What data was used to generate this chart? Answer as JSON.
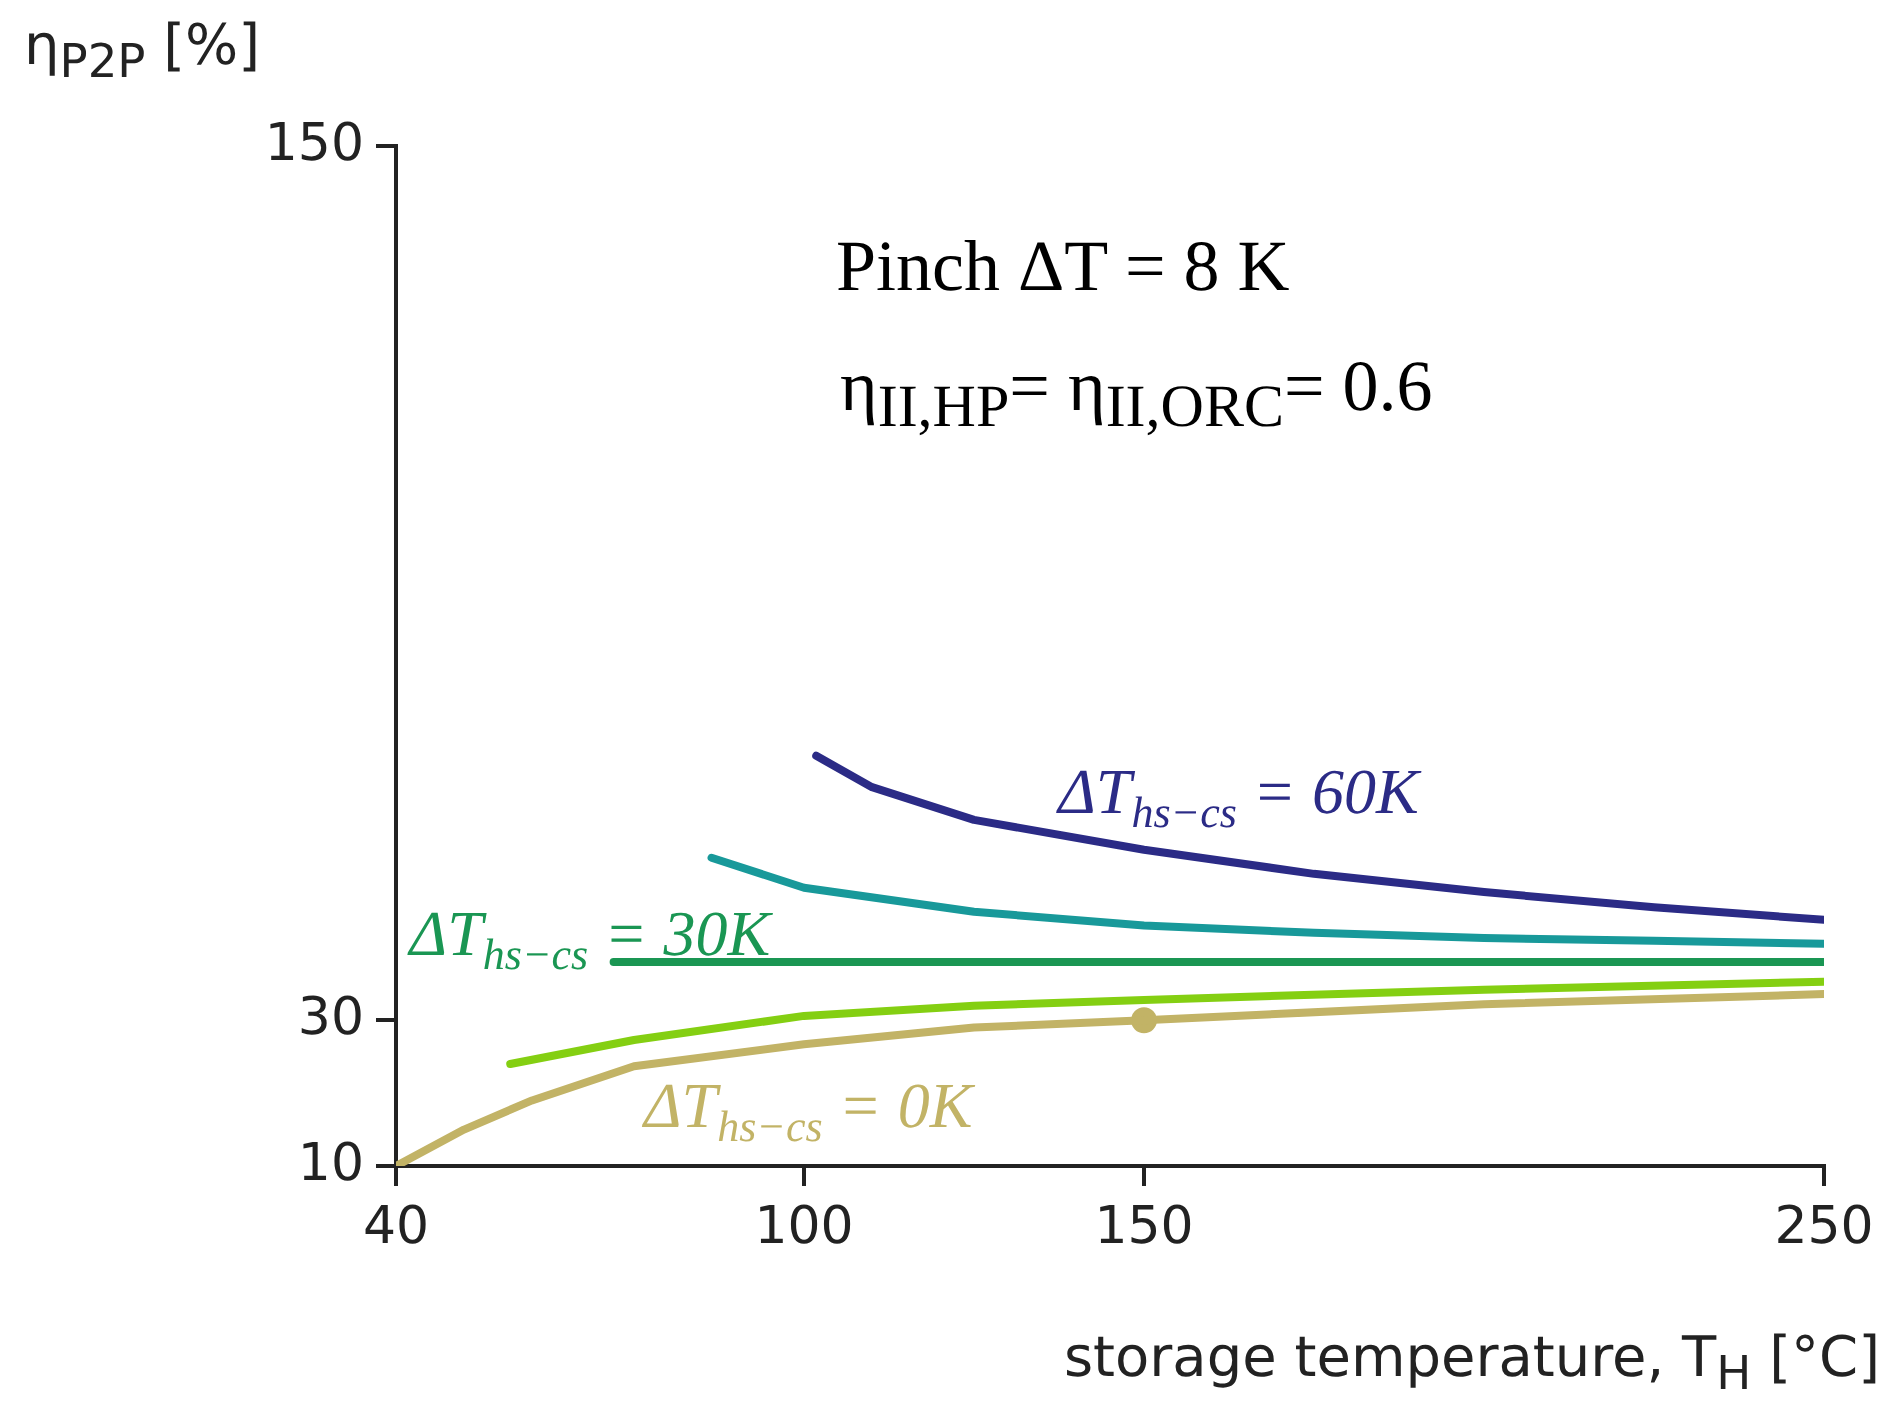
{
  "chart_data": {
    "type": "line",
    "xlabel": "storage temperature, T$_{H}$ [°C]",
    "ylabel": "η$_{P2P}$ [%]",
    "annotations": [
      "Pinch ΔT = 8 K",
      "η$_{II,HP}$= η$_{II,ORC}$= 0.6"
    ],
    "xlim": [
      40,
      250
    ],
    "xticks": [
      40,
      100,
      150,
      250
    ],
    "ylim": [
      10,
      150
    ],
    "yticks": [
      10,
      30,
      150
    ],
    "grid": false,
    "legend": false,
    "line_style": "solid",
    "series": [
      {
        "name": "ΔT$_{hs−cs}$ = 60K",
        "color": "#2b2b86",
        "x": [
          101.8,
          110,
          125,
          150,
          175,
          200,
          225,
          250
        ],
        "values": [
          66.3,
          62,
          57.5,
          53.4,
          50.1,
          47.6,
          45.5,
          43.8
        ]
      },
      {
        "color": "#18999a",
        "x": [
          86.4,
          100,
          125,
          150,
          175,
          200,
          225,
          250
        ],
        "values": [
          52.3,
          48.2,
          44.9,
          43,
          42,
          41.3,
          40.9,
          40.5
        ]
      },
      {
        "name": "ΔT$_{hs−cs}$ = 30K",
        "color": "#1a9653",
        "x": [
          72,
          100,
          150,
          200,
          250
        ],
        "values": [
          38,
          38,
          38,
          38,
          38
        ]
      },
      {
        "color": "#84cf12",
        "x": [
          56.8,
          75,
          100,
          125,
          150,
          200,
          250
        ],
        "values": [
          24,
          27.3,
          30.6,
          32,
          32.8,
          34.2,
          35.3
        ]
      },
      {
        "name": "ΔT$_{hs−cs}$ = 0K",
        "color": "#c2b366",
        "x": [
          40,
          50,
          60,
          75,
          100,
          125,
          150,
          200,
          250
        ],
        "values": [
          10,
          15,
          19,
          23.7,
          26.7,
          29,
          30,
          32.2,
          33.6
        ]
      },
      {
        "type": "scatter",
        "marker": "circle",
        "color": "#c2b366",
        "x": [
          150
        ],
        "values": [
          30
        ]
      }
    ]
  }
}
